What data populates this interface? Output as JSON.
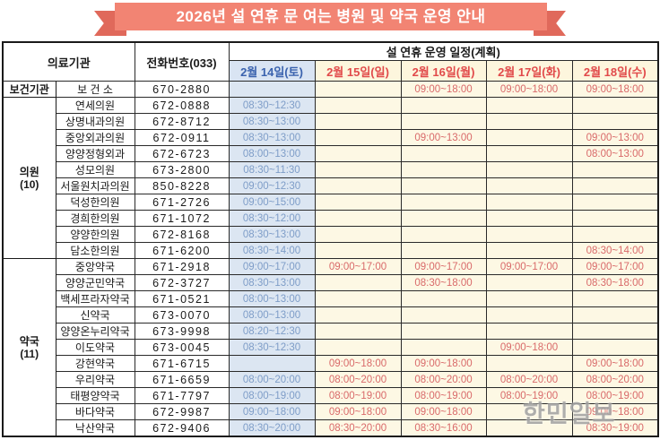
{
  "banner": {
    "title": "2026년 설 연휴 문 여는 병원 및 약국 운영 안내"
  },
  "table": {
    "header": {
      "org": "의료기관",
      "phone": "전화번호(033)",
      "schedule": "설 연휴 운영 일정(계획)",
      "dates": [
        "2월 14일(토)",
        "2월 15일(일)",
        "2월 16일(월)",
        "2월 17일(화)",
        "2월 18일(수)"
      ]
    },
    "sections": [
      {
        "group": "보건기관",
        "count": "",
        "rows": [
          {
            "name": "보 건 소",
            "phone": "670-2880",
            "times": [
              "",
              "",
              "09:00~18:00",
              "09:00~18:00",
              "09:00~18:00"
            ]
          }
        ]
      },
      {
        "group": "의원",
        "count": "(10)",
        "rows": [
          {
            "name": "연세의원",
            "phone": "672-0888",
            "times": [
              "08:30~12:30",
              "",
              "",
              "",
              ""
            ]
          },
          {
            "name": "상명내과의원",
            "phone": "672-8712",
            "times": [
              "08:30~13:00",
              "",
              "",
              "",
              ""
            ]
          },
          {
            "name": "중앙외과의원",
            "phone": "672-0911",
            "times": [
              "08:30~13:00",
              "",
              "09:00~13:00",
              "",
              "09:00~13:00"
            ]
          },
          {
            "name": "양양정형외과",
            "phone": "672-6723",
            "times": [
              "08:00~13:00",
              "",
              "",
              "",
              "08:00~13:00"
            ]
          },
          {
            "name": "성모의원",
            "phone": "673-2800",
            "times": [
              "08:30~11:30",
              "",
              "",
              "",
              ""
            ]
          },
          {
            "name": "서울원치과의원",
            "phone": "850-8228",
            "times": [
              "09:00~12:30",
              "",
              "",
              "",
              ""
            ]
          },
          {
            "name": "덕성한의원",
            "phone": "671-2726",
            "times": [
              "09:00~15:00",
              "",
              "",
              "",
              ""
            ]
          },
          {
            "name": "경희한의원",
            "phone": "671-1072",
            "times": [
              "08:30~12:00",
              "",
              "",
              "",
              ""
            ]
          },
          {
            "name": "양양한의원",
            "phone": "672-8168",
            "times": [
              "08:30~13:00",
              "",
              "",
              "",
              ""
            ]
          },
          {
            "name": "담소한의원",
            "phone": "671-6200",
            "times": [
              "08:30~14:00",
              "",
              "",
              "",
              "08:30~14:00"
            ]
          }
        ]
      },
      {
        "group": "약국",
        "count": "(11)",
        "rows": [
          {
            "name": "중앙약국",
            "phone": "671-2918",
            "times": [
              "09:00~17:00",
              "09:00~17:00",
              "09:00~17:00",
              "09:00~17:00",
              "09:00~17:00"
            ]
          },
          {
            "name": "양양군민약국",
            "phone": "672-3727",
            "times": [
              "08:30~13:00",
              "",
              "08:30~18:00",
              "",
              "08:30~18:00"
            ]
          },
          {
            "name": "백세프라자약국",
            "phone": "671-0521",
            "times": [
              "08:00~13:00",
              "",
              "",
              "",
              ""
            ]
          },
          {
            "name": "신약국",
            "phone": "673-0070",
            "times": [
              "08:00~13:00",
              "",
              "",
              "",
              ""
            ]
          },
          {
            "name": "양양온누리약국",
            "phone": "673-9998",
            "times": [
              "08:20~12:30",
              "",
              "",
              "",
              ""
            ]
          },
          {
            "name": "이도약국",
            "phone": "673-0045",
            "times": [
              "08:30~12:30",
              "",
              "",
              "09:00~18:00",
              ""
            ]
          },
          {
            "name": "강현약국",
            "phone": "671-6715",
            "times": [
              "",
              "09:00~18:00",
              "09:00~18:00",
              "",
              "09:00~18:00"
            ]
          },
          {
            "name": "우리약국",
            "phone": "671-6659",
            "times": [
              "08:00~20:00",
              "08:00~20:00",
              "08:00~20:00",
              "08:00~20:00",
              "08:00~20:00"
            ]
          },
          {
            "name": "태평양약국",
            "phone": "671-7797",
            "times": [
              "08:00~19:00",
              "08:00~19:00",
              "08:00~19:00",
              "08:00~19:00",
              "08:00~19:00"
            ]
          },
          {
            "name": "바다약국",
            "phone": "672-9987",
            "times": [
              "09:00~18:00",
              "09:00~18:00",
              "09:00~18:00",
              "",
              "09:00~18:00"
            ]
          },
          {
            "name": "낙산약국",
            "phone": "672-9406",
            "times": [
              "08:30~20:00",
              "08:30~20:00",
              "08:30~16:00",
              "",
              "08:30~19:00"
            ]
          }
        ]
      }
    ]
  },
  "watermark": "한민일보",
  "colors": {
    "banner_bg": "#F28473",
    "ribbon_tail": "#E0695B",
    "saturday_bg": "#DCE6F2",
    "saturday_text": "#7E9DC8",
    "saturday_header_text": "#3A62AE",
    "holiday_bg": "#FDF8E4",
    "holiday_text": "#D96A6A",
    "holiday_header_text": "#E14A4A"
  }
}
